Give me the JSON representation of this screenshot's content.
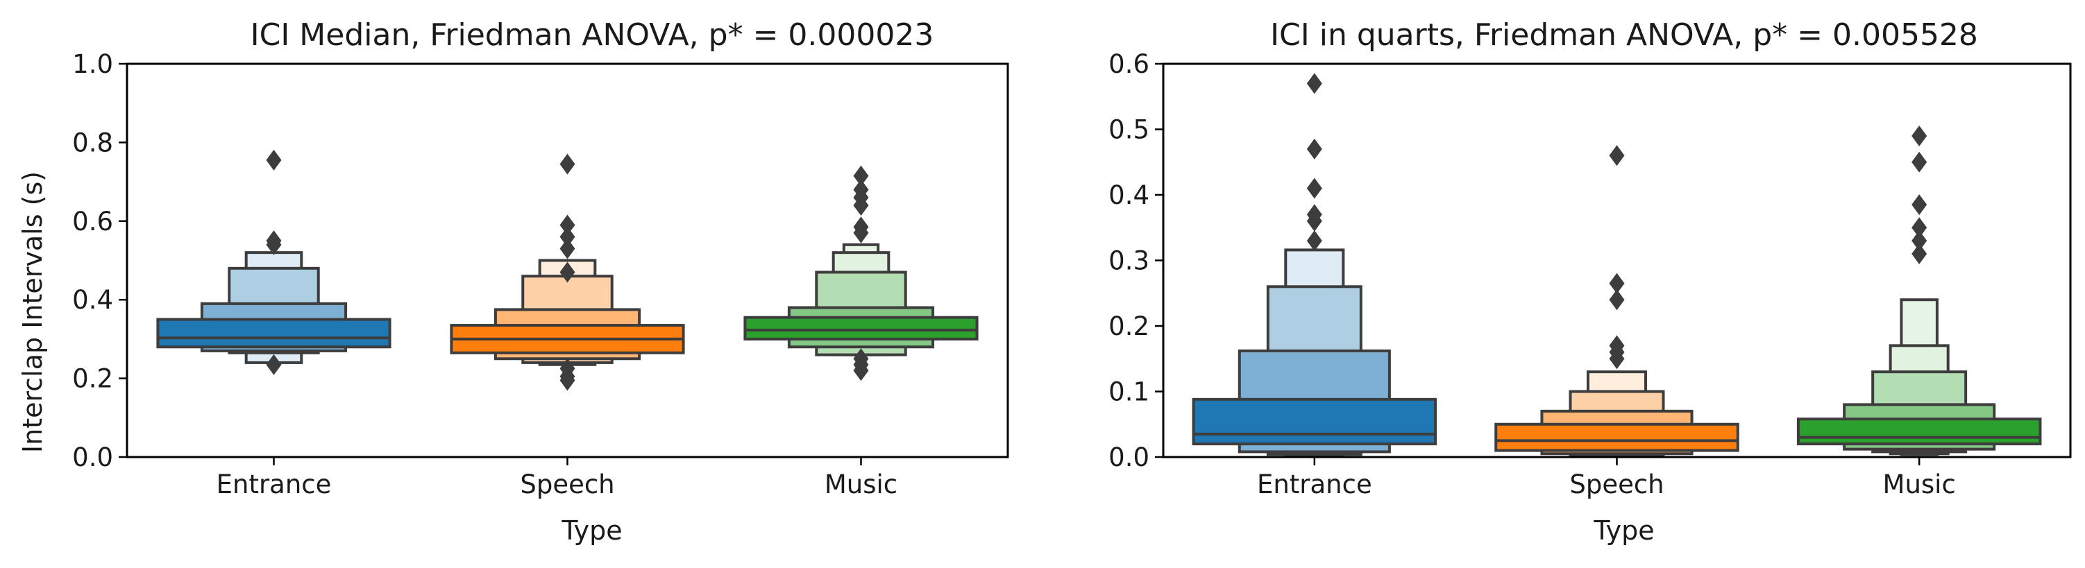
{
  "chart_data": [
    {
      "type": "boxen",
      "title": "ICI Median, Friedman ANOVA, p* = 0.000023",
      "xlabel": "Type",
      "ylabel": "Interclap Intervals (s)",
      "ylim": [
        0,
        1.0
      ],
      "yticks": [
        "0.0",
        "0.2",
        "0.4",
        "0.6",
        "0.8",
        "1.0"
      ],
      "categories": [
        "Entrance",
        "Speech",
        "Music"
      ],
      "colors": [
        "#1f77b4",
        "#ff7f0e",
        "#2ca02c"
      ],
      "series": [
        {
          "median": 0.303,
          "boxes": [
            [
              0.28,
              0.35
            ],
            [
              0.27,
              0.39
            ],
            [
              0.265,
              0.48
            ],
            [
              0.24,
              0.52
            ]
          ],
          "outliers": [
            0.235,
            0.54,
            0.55,
            0.755
          ]
        },
        {
          "median": 0.3,
          "boxes": [
            [
              0.265,
              0.335
            ],
            [
              0.25,
              0.375
            ],
            [
              0.24,
              0.46
            ],
            [
              0.235,
              0.5
            ]
          ],
          "outliers": [
            0.195,
            0.205,
            0.225,
            0.47,
            0.53,
            0.56,
            0.59,
            0.745
          ]
        },
        {
          "median": 0.323,
          "boxes": [
            [
              0.3,
              0.355
            ],
            [
              0.28,
              0.38
            ],
            [
              0.26,
              0.47
            ],
            [
              0.26,
              0.52
            ],
            [
              0.26,
              0.54
            ]
          ],
          "outliers": [
            0.22,
            0.235,
            0.25,
            0.57,
            0.585,
            0.64,
            0.66,
            0.68,
            0.715
          ]
        }
      ]
    },
    {
      "type": "boxen",
      "title": "ICI in quarts, Friedman ANOVA, p* = 0.005528",
      "xlabel": "Type",
      "ylabel": "",
      "ylim": [
        0,
        0.6
      ],
      "yticks": [
        "0.0",
        "0.1",
        "0.2",
        "0.3",
        "0.4",
        "0.5",
        "0.6"
      ],
      "categories": [
        "Entrance",
        "Speech",
        "Music"
      ],
      "colors": [
        "#1f77b4",
        "#ff7f0e",
        "#2ca02c"
      ],
      "series": [
        {
          "median": 0.035,
          "boxes": [
            [
              0.02,
              0.088
            ],
            [
              0.008,
              0.162
            ],
            [
              0.004,
              0.26
            ],
            [
              0.002,
              0.316
            ]
          ],
          "outliers": [
            0.33,
            0.36,
            0.37,
            0.41,
            0.47,
            0.57
          ]
        },
        {
          "median": 0.025,
          "boxes": [
            [
              0.01,
              0.05
            ],
            [
              0.005,
              0.07
            ],
            [
              0.002,
              0.1
            ],
            [
              0.001,
              0.13
            ]
          ],
          "outliers": [
            0.15,
            0.16,
            0.17,
            0.24,
            0.265,
            0.46
          ]
        },
        {
          "median": 0.03,
          "boxes": [
            [
              0.02,
              0.058
            ],
            [
              0.012,
              0.08
            ],
            [
              0.008,
              0.13
            ],
            [
              0.005,
              0.17
            ],
            [
              0.004,
              0.24
            ]
          ],
          "outliers": [
            0.31,
            0.33,
            0.35,
            0.385,
            0.45,
            0.49
          ]
        }
      ]
    }
  ]
}
